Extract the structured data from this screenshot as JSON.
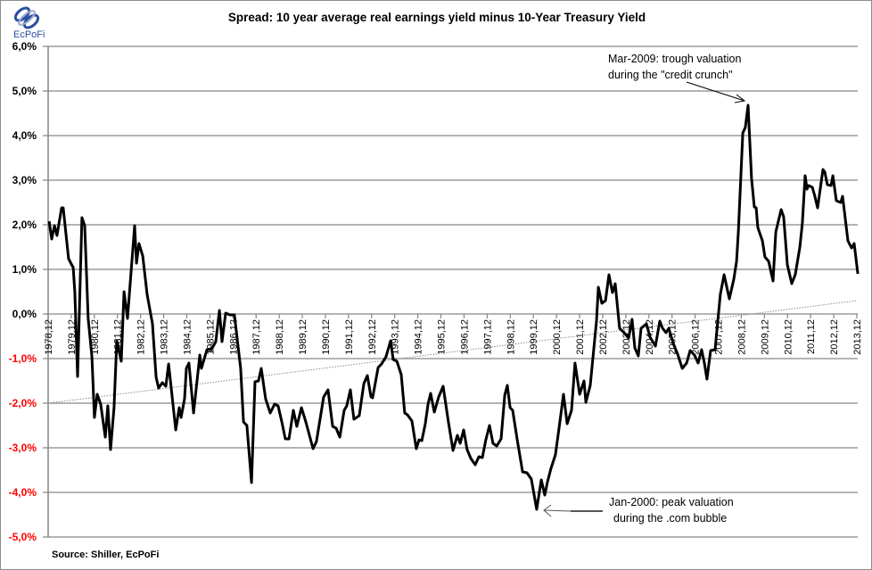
{
  "logo": {
    "text": "EcPoFi",
    "color": "#2b4fa0"
  },
  "chart_data": {
    "type": "line",
    "title": "Spread: 10 year average real earnings yield minus 10-Year Treasury Yield",
    "xlabel": "",
    "ylabel": "",
    "xlim": [
      1978.917,
      2013.917
    ],
    "ylim": [
      -5,
      6
    ],
    "grid": "horizontal",
    "legend": "none",
    "y_ticks": [
      "-5,0%",
      "-4,0%",
      "-3,0%",
      "-2,0%",
      "-1,0%",
      "0,0%",
      "1,0%",
      "2,0%",
      "3,0%",
      "4,0%",
      "5,0%",
      "6,0%"
    ],
    "y_tick_values": [
      -5,
      -4,
      -3,
      -2,
      -1,
      0,
      1,
      2,
      3,
      4,
      5,
      6
    ],
    "negative_tick_color": "#ff0000",
    "x_ticks": [
      "1978,12",
      "1979,12",
      "1980,12",
      "1981,12",
      "1982,12",
      "1983,12",
      "1984,12",
      "1985,12",
      "1986,12",
      "1987,12",
      "1988,12",
      "1989,12",
      "1990,12",
      "1991,12",
      "1992,12",
      "1993,12",
      "1994,12",
      "1995,12",
      "1996,12",
      "1997,12",
      "1998,12",
      "1999,12",
      "2000,12",
      "2001,12",
      "2002,12",
      "2003,12",
      "2004,12",
      "2005,12",
      "2006,12",
      "2007,12",
      "2008,12",
      "2009,12",
      "2010,12",
      "2011,12",
      "2012,12",
      "2013,12"
    ],
    "series": [
      {
        "color": "#000000",
        "x": [
          1978.96,
          1979.07,
          1979.19,
          1979.3,
          1979.5,
          1979.57,
          1979.8,
          1980.0,
          1980.07,
          1980.19,
          1980.38,
          1980.5,
          1980.65,
          1980.81,
          1980.92,
          1981.04,
          1981.19,
          1981.39,
          1981.5,
          1981.62,
          1981.77,
          1981.89,
          1982.08,
          1982.2,
          1982.35,
          1982.66,
          1982.74,
          1982.85,
          1983.01,
          1983.2,
          1983.43,
          1983.59,
          1983.7,
          1983.86,
          1984.01,
          1984.13,
          1984.44,
          1984.59,
          1984.67,
          1984.82,
          1984.9,
          1985.01,
          1985.21,
          1985.48,
          1985.55,
          1985.79,
          1985.98,
          1986.17,
          1986.33,
          1986.44,
          1986.6,
          1986.79,
          1986.98,
          1987.25,
          1987.37,
          1987.52,
          1987.72,
          1987.87,
          1988.02,
          1988.14,
          1988.33,
          1988.53,
          1988.72,
          1988.87,
          1989.03,
          1989.18,
          1989.34,
          1989.53,
          1989.68,
          1989.88,
          1990.07,
          1990.38,
          1990.53,
          1990.84,
          1991.03,
          1991.23,
          1991.38,
          1991.54,
          1991.73,
          1991.84,
          1992.0,
          1992.15,
          1992.38,
          1992.58,
          1992.73,
          1992.89,
          1992.96,
          1993.2,
          1993.35,
          1993.54,
          1993.74,
          1993.85,
          1994.01,
          1994.2,
          1994.35,
          1994.47,
          1994.66,
          1994.85,
          1994.97,
          1995.09,
          1995.24,
          1995.36,
          1995.47,
          1995.63,
          1995.82,
          1996.01,
          1996.24,
          1996.44,
          1996.63,
          1996.75,
          1996.9,
          1997.05,
          1997.21,
          1997.4,
          1997.56,
          1997.71,
          1997.86,
          1998.02,
          1998.17,
          1998.33,
          1998.52,
          1998.68,
          1998.79,
          1998.91,
          1999.02,
          1999.22,
          1999.45,
          1999.64,
          1999.83,
          2000.06,
          2000.26,
          2000.41,
          2000.53,
          2000.68,
          2000.87,
          2001.03,
          2001.22,
          2001.38,
          2001.57,
          2001.72,
          2001.92,
          2002.11,
          2002.19,
          2002.38,
          2002.65,
          2002.73,
          2002.88,
          2003.04,
          2003.19,
          2003.34,
          2003.46,
          2003.65,
          2003.85,
          2004.04,
          2004.19,
          2004.31,
          2004.46,
          2004.58,
          2004.81,
          2004.97,
          2005.2,
          2005.39,
          2005.51,
          2005.66,
          2005.78,
          2005.97,
          2006.16,
          2006.36,
          2006.55,
          2006.7,
          2006.89,
          2007.05,
          2007.2,
          2007.32,
          2007.43,
          2007.59,
          2007.78,
          2008.01,
          2008.17,
          2008.4,
          2008.59,
          2008.71,
          2008.79,
          2008.98,
          2009.09,
          2009.21,
          2009.36,
          2009.48,
          2009.56,
          2009.63,
          2009.83,
          2009.94,
          2010.1,
          2010.29,
          2010.41,
          2010.64,
          2010.75,
          2010.91,
          2011.1,
          2011.25,
          2011.45,
          2011.56,
          2011.68,
          2011.76,
          2011.83,
          2011.99,
          2012.1,
          2012.22,
          2012.45,
          2012.53,
          2012.64,
          2012.8,
          2012.88,
          2013.03,
          2013.22,
          2013.3,
          2013.53,
          2013.69,
          2013.8,
          2013.96
        ],
        "y": [
          2.08,
          1.68,
          1.98,
          1.76,
          2.38,
          2.38,
          1.24,
          1.04,
          0.5,
          -1.4,
          2.16,
          1.98,
          -0.1,
          -0.96,
          -2.32,
          -1.8,
          -2.02,
          -2.76,
          -2.06,
          -3.04,
          -2.1,
          -0.6,
          -1.06,
          0.5,
          -0.1,
          1.98,
          1.14,
          1.58,
          1.3,
          0.44,
          -0.22,
          -1.42,
          -1.66,
          -1.54,
          -1.62,
          -1.12,
          -2.6,
          -2.1,
          -2.32,
          -1.9,
          -1.22,
          -1.1,
          -2.22,
          -0.92,
          -1.22,
          -0.8,
          -0.8,
          -0.62,
          0.08,
          -0.62,
          0.02,
          -0.02,
          -0.02,
          -1.22,
          -2.42,
          -2.5,
          -3.78,
          -1.52,
          -1.5,
          -1.22,
          -1.9,
          -2.22,
          -2.02,
          -2.06,
          -2.42,
          -2.8,
          -2.8,
          -2.16,
          -2.52,
          -2.1,
          -2.42,
          -3.02,
          -2.86,
          -1.86,
          -1.7,
          -2.52,
          -2.56,
          -2.76,
          -2.16,
          -2.06,
          -1.7,
          -2.36,
          -2.28,
          -1.56,
          -1.38,
          -1.86,
          -1.88,
          -1.2,
          -1.12,
          -0.96,
          -0.6,
          -1.02,
          -1.06,
          -1.36,
          -2.22,
          -2.26,
          -2.4,
          -3.02,
          -2.82,
          -2.84,
          -2.46,
          -2.02,
          -1.78,
          -2.2,
          -1.86,
          -1.62,
          -2.42,
          -3.06,
          -2.72,
          -2.9,
          -2.6,
          -3.04,
          -3.24,
          -3.38,
          -3.2,
          -3.22,
          -2.82,
          -2.5,
          -2.9,
          -2.96,
          -2.8,
          -1.82,
          -1.6,
          -2.1,
          -2.16,
          -2.82,
          -3.54,
          -3.56,
          -3.7,
          -4.38,
          -3.72,
          -4.06,
          -3.76,
          -3.46,
          -3.16,
          -2.56,
          -1.8,
          -2.46,
          -2.16,
          -1.1,
          -1.8,
          -1.5,
          -1.98,
          -1.6,
          -0.16,
          0.6,
          0.24,
          0.3,
          0.88,
          0.48,
          0.68,
          -0.32,
          -0.42,
          -0.54,
          -0.12,
          -0.76,
          -0.94,
          -0.32,
          -0.22,
          -0.52,
          -0.72,
          -0.16,
          -0.32,
          -0.42,
          -0.32,
          -0.66,
          -0.9,
          -1.22,
          -1.1,
          -0.82,
          -0.92,
          -1.1,
          -0.8,
          -1.1,
          -1.46,
          -0.82,
          -0.8,
          0.44,
          0.88,
          0.34,
          0.78,
          1.18,
          1.84,
          4.06,
          4.18,
          4.68,
          3.04,
          2.4,
          2.38,
          1.94,
          1.64,
          1.28,
          1.18,
          0.74,
          1.84,
          2.34,
          2.18,
          1.1,
          0.68,
          0.88,
          1.5,
          2.04,
          3.1,
          2.8,
          2.88,
          2.84,
          2.64,
          2.38,
          3.24,
          3.18,
          2.9,
          2.88,
          3.1,
          2.54,
          2.5,
          2.64,
          1.64,
          1.48,
          1.58,
          0.9
        ]
      }
    ],
    "trendline": {
      "type": "linear",
      "style": "dotted",
      "color": "#8c8c8c",
      "x": [
        1978.917,
        2013.917
      ],
      "y": [
        -2.0,
        0.3
      ]
    },
    "annotations": [
      {
        "lines": [
          "Mar-2009:  trough valuation",
          "during the \"credit crunch\""
        ],
        "x": 2009.21,
        "y": 4.68
      },
      {
        "lines": [
          "Jan-2000: peak valuation",
          "during the .com bubble"
        ],
        "x": 2000.06,
        "y": -4.38
      }
    ],
    "source": "Source: Shiller,  EcPoFi"
  }
}
